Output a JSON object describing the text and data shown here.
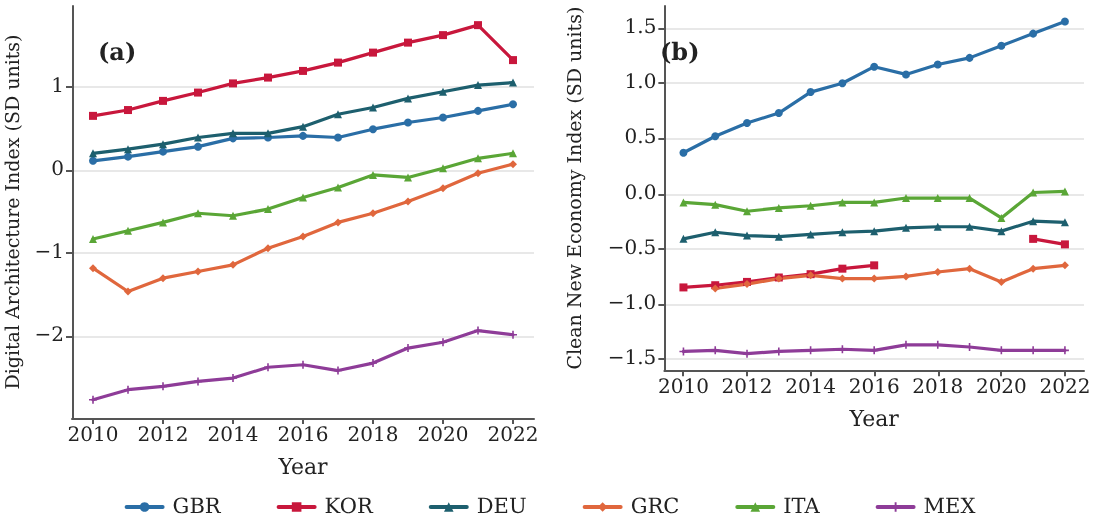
{
  "chart_data": [
    {
      "type": "line",
      "title": "(a)",
      "xlabel": "Year",
      "ylabel": "Digital Architecture Index (SD units)",
      "x": [
        2010,
        2011,
        2012,
        2013,
        2014,
        2015,
        2016,
        2017,
        2018,
        2019,
        2020,
        2021,
        2022
      ],
      "xlim": [
        2009.4,
        2022.6
      ],
      "xticks": [
        2010,
        2012,
        2014,
        2016,
        2018,
        2020,
        2022
      ],
      "ylim": [
        -2.98,
        1.97
      ],
      "yticks": [
        -2,
        -1,
        0,
        1
      ],
      "grid": "y",
      "legend": "bottom",
      "series": [
        {
          "name": "GBR",
          "color": "#2a6ea6",
          "marker": "circle",
          "values": [
            0.11,
            0.16,
            0.22,
            0.28,
            0.38,
            0.39,
            0.41,
            0.39,
            0.49,
            0.57,
            0.63,
            0.71,
            0.79
          ]
        },
        {
          "name": "KOR",
          "color": "#c8173c",
          "marker": "square",
          "values": [
            0.65,
            0.72,
            0.83,
            0.93,
            1.04,
            1.11,
            1.19,
            1.29,
            1.41,
            1.53,
            1.62,
            1.74,
            1.32
          ]
        },
        {
          "name": "DEU",
          "color": "#1d5f6e",
          "marker": "triangle",
          "values": [
            0.2,
            0.25,
            0.31,
            0.39,
            0.44,
            0.44,
            0.52,
            0.67,
            0.75,
            0.86,
            0.94,
            1.02,
            1.05
          ]
        },
        {
          "name": "GRC",
          "color": "#e0673d",
          "marker": "diamond",
          "values": [
            -1.18,
            -1.46,
            -1.3,
            -1.22,
            -1.14,
            -0.94,
            -0.8,
            -0.63,
            -0.52,
            -0.38,
            -0.22,
            -0.04,
            0.07
          ]
        },
        {
          "name": "ITA",
          "color": "#5aa636",
          "marker": "triangle",
          "values": [
            -0.83,
            -0.73,
            -0.63,
            -0.52,
            -0.55,
            -0.47,
            -0.33,
            -0.21,
            -0.06,
            -0.09,
            0.02,
            0.14,
            0.2
          ]
        },
        {
          "name": "MEX",
          "color": "#8e3c98",
          "marker": "cross",
          "values": [
            -2.76,
            -2.64,
            -2.6,
            -2.54,
            -2.5,
            -2.37,
            -2.34,
            -2.41,
            -2.32,
            -2.14,
            -2.07,
            -1.93,
            -1.98
          ]
        }
      ]
    },
    {
      "type": "line",
      "title": "(b)",
      "xlabel": "Year",
      "ylabel": "Clean New Economy Index (SD units)",
      "x": [
        2010,
        2011,
        2012,
        2013,
        2014,
        2015,
        2016,
        2017,
        2018,
        2019,
        2020,
        2021,
        2022
      ],
      "xlim": [
        2009.4,
        2022.6
      ],
      "xticks": [
        2010,
        2012,
        2014,
        2016,
        2018,
        2020,
        2022
      ],
      "ylim": [
        -1.6,
        1.7
      ],
      "yticks": [
        -1.5,
        {
          "value": -1,
          "label": "−1.0"
        },
        -0.5,
        {
          "value": 0,
          "label": "0.0"
        },
        0.5,
        {
          "value": 1,
          "label": "1.0"
        },
        1.5
      ],
      "grid": "y",
      "legend": false,
      "series": [
        {
          "color": "#2a6ea6",
          "marker": "circle",
          "values": [
            0.37,
            0.52,
            0.64,
            0.73,
            0.92,
            1.0,
            1.15,
            1.08,
            1.17,
            1.23,
            1.34,
            1.45,
            1.56
          ]
        },
        {
          "color": "#c8173c",
          "marker": "square",
          "values": [
            -0.85,
            -0.83,
            -0.8,
            -0.76,
            -0.73,
            -0.68,
            -0.65,
            null,
            null,
            null,
            null,
            -0.41,
            -0.46
          ]
        },
        {
          "color": "#1d5f6e",
          "marker": "triangle",
          "values": [
            -0.41,
            -0.35,
            -0.38,
            -0.39,
            -0.37,
            -0.35,
            -0.34,
            -0.31,
            -0.3,
            -0.3,
            -0.34,
            -0.25,
            -0.26
          ]
        },
        {
          "color": "#e0673d",
          "marker": "diamond",
          "values": [
            null,
            -0.86,
            -0.82,
            -0.77,
            -0.74,
            -0.77,
            -0.77,
            -0.75,
            -0.71,
            -0.68,
            -0.8,
            -0.68,
            -0.65
          ]
        },
        {
          "color": "#5aa636",
          "marker": "triangle",
          "values": [
            -0.08,
            -0.1,
            -0.16,
            -0.13,
            -0.11,
            -0.08,
            -0.08,
            -0.04,
            -0.04,
            -0.04,
            -0.22,
            0.01,
            0.02
          ]
        },
        {
          "color": "#8e3c98",
          "marker": "cross",
          "values": [
            -1.43,
            -1.42,
            -1.45,
            -1.43,
            -1.42,
            -1.41,
            -1.42,
            -1.37,
            -1.37,
            -1.39,
            -1.42,
            -1.42,
            -1.42
          ]
        }
      ]
    }
  ]
}
